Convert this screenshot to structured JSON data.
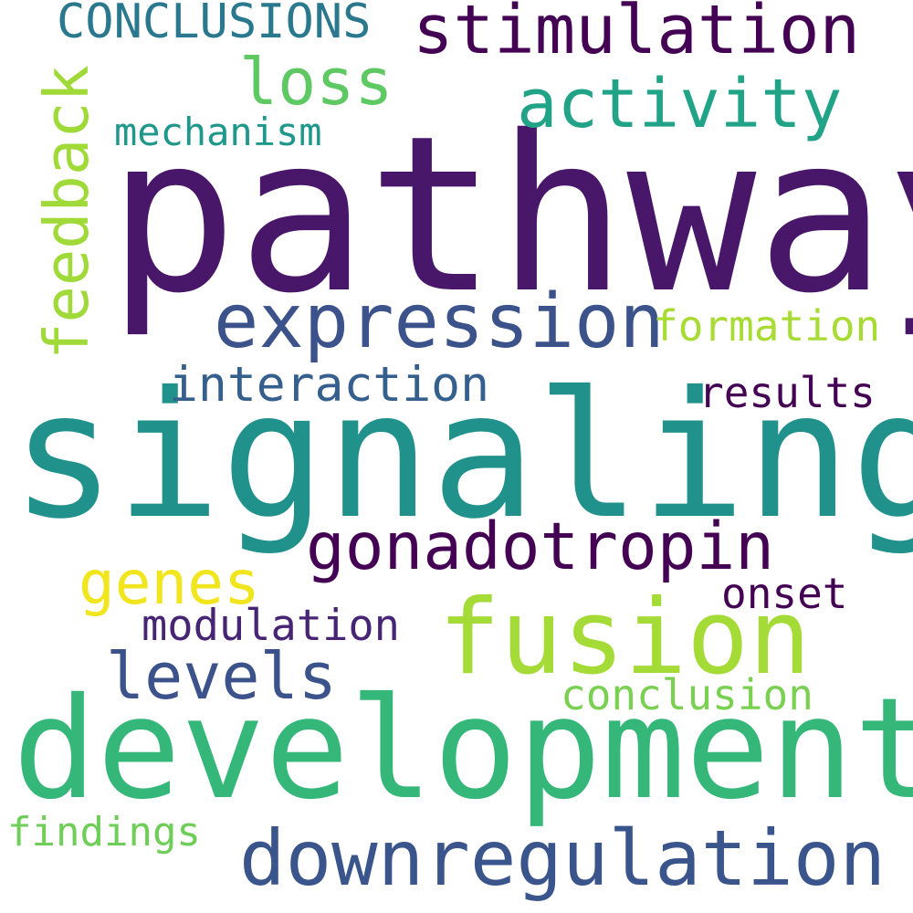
{
  "words": [
    {
      "text": "pathway",
      "color": "#481769"
    },
    {
      "text": "signaling",
      "color": "#21918c"
    },
    {
      "text": "development",
      "color": "#35b779"
    },
    {
      "text": "fusion",
      "color": "#a5db36"
    },
    {
      "text": "downregulation",
      "color": "#3a548c"
    },
    {
      "text": "expression",
      "color": "#3b528b"
    },
    {
      "text": "gonadotropin",
      "color": "#440154"
    },
    {
      "text": "stimulation",
      "color": "#440154"
    },
    {
      "text": "activity",
      "color": "#20a386"
    },
    {
      "text": "levels",
      "color": "#3b528b"
    },
    {
      "text": "loss",
      "color": "#5ec962"
    },
    {
      "text": "genes",
      "color": "#f1e51d"
    },
    {
      "text": "feedback",
      "color": "#a0da39",
      "orientation": "vertical"
    },
    {
      "text": "CONCLUSIONS",
      "color": "#2a788e"
    },
    {
      "text": "interaction",
      "color": "#355f8d"
    },
    {
      "text": "formation",
      "color": "#a8db34"
    },
    {
      "text": "results",
      "color": "#440154"
    },
    {
      "text": "modulation",
      "color": "#482475"
    },
    {
      "text": "onset",
      "color": "#440154"
    },
    {
      "text": "conclusion",
      "color": "#7ad151"
    },
    {
      "text": "mechanism",
      "color": "#1f988b"
    },
    {
      "text": "findings",
      "color": "#6ece58"
    }
  ]
}
